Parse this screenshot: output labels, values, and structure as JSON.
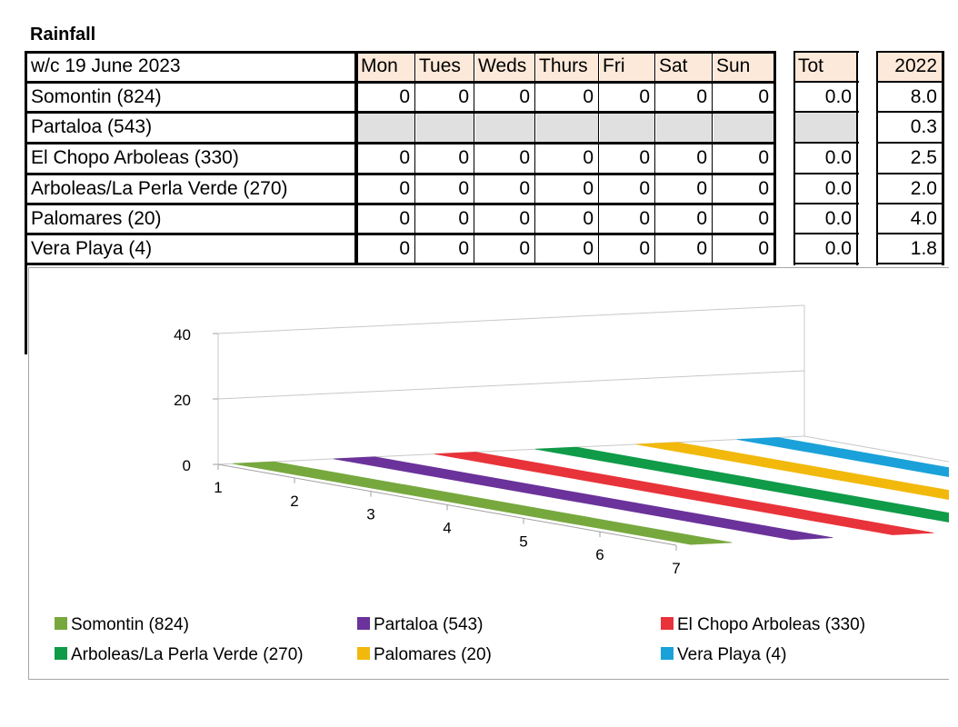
{
  "page_title": "Rainfall",
  "table": {
    "week_label": "w/c 19 June 2023",
    "days": [
      "Mon",
      "Tues",
      "Weds",
      "Thurs",
      "Fri",
      "Sat",
      "Sun"
    ],
    "tot_header": "Tot",
    "prev_header": "2022",
    "rows": [
      {
        "station": "Somontin (824)",
        "days": [
          "0",
          "0",
          "0",
          "0",
          "0",
          "0",
          "0"
        ],
        "tot": "0.0",
        "prev": "8.0"
      },
      {
        "station": "Partaloa (543)",
        "days": [
          "",
          "",
          "",
          "",
          "",
          "",
          ""
        ],
        "tot": "",
        "prev": "0.3",
        "no_data": true
      },
      {
        "station": "El Chopo Arboleas (330)",
        "days": [
          "0",
          "0",
          "0",
          "0",
          "0",
          "0",
          "0"
        ],
        "tot": "0.0",
        "prev": "2.5"
      },
      {
        "station": "Arboleas/La Perla Verde (270)",
        "days": [
          "0",
          "0",
          "0",
          "0",
          "0",
          "0",
          "0"
        ],
        "tot": "0.0",
        "prev": "2.0"
      },
      {
        "station": "Palomares (20)",
        "days": [
          "0",
          "0",
          "0",
          "0",
          "0",
          "0",
          "0"
        ],
        "tot": "0.0",
        "prev": "4.0"
      },
      {
        "station": "Vera Playa (4)",
        "days": [
          "0",
          "0",
          "0",
          "0",
          "0",
          "0",
          "0"
        ],
        "tot": "0.0",
        "prev": "1.8"
      }
    ]
  },
  "chart_data": {
    "type": "bar",
    "subtype": "3d-ribbon",
    "title": "",
    "x": [
      1,
      2,
      3,
      4,
      5,
      6,
      7
    ],
    "x_tick_labels": [
      "1",
      "2",
      "3",
      "4",
      "5",
      "6",
      "7"
    ],
    "y_ticks": [
      "0",
      "20",
      "40"
    ],
    "ylim": [
      0,
      40
    ],
    "grid": true,
    "legend_position": "bottom",
    "series": [
      {
        "name": "Somontin (824)",
        "color": "#77a83e",
        "values": [
          0,
          0,
          0,
          0,
          0,
          0,
          0
        ]
      },
      {
        "name": "Partaloa (543)",
        "color": "#6a329a",
        "values": [
          0,
          0,
          0,
          0,
          0,
          0,
          0
        ]
      },
      {
        "name": "El Chopo Arboleas (330)",
        "color": "#e8333a",
        "values": [
          0,
          0,
          0,
          0,
          0,
          0,
          0
        ]
      },
      {
        "name": "Arboleas/La Perla Verde (270)",
        "color": "#0f9b48",
        "values": [
          0,
          0,
          0,
          0,
          0,
          0,
          0
        ]
      },
      {
        "name": "Palomares (20)",
        "color": "#f2b90c",
        "values": [
          0,
          0,
          0,
          0,
          0,
          0,
          0
        ]
      },
      {
        "name": "Vera Playa (4)",
        "color": "#1aa1d9",
        "values": [
          0,
          0,
          0,
          0,
          0,
          0,
          0
        ]
      }
    ]
  }
}
